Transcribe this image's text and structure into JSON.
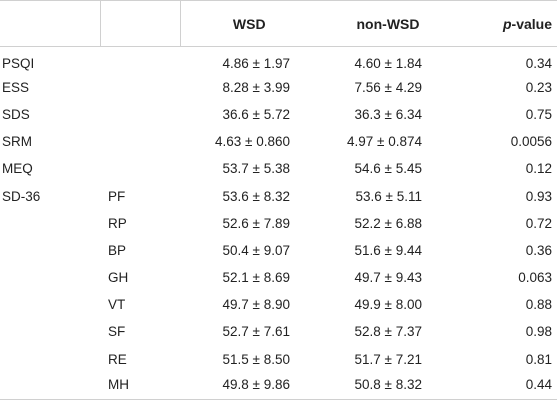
{
  "table": {
    "headers": {
      "col1": "",
      "col2": "",
      "wsd": "WSD",
      "nonwsd": "non-WSD",
      "p_italic": "p",
      "p_rest": "-value"
    },
    "rows": [
      {
        "variable": "PSQI",
        "sub": "",
        "wsd": "4.86 ± 1.97",
        "nonwsd": "4.60 ± 1.84",
        "p": "0.34"
      },
      {
        "variable": "ESS",
        "sub": "",
        "wsd": "8.28 ± 3.99",
        "nonwsd": "7.56 ± 4.29",
        "p": "0.23"
      },
      {
        "variable": "SDS",
        "sub": "",
        "wsd": "36.6 ± 5.72",
        "nonwsd": "36.3 ± 6.34",
        "p": "0.75"
      },
      {
        "variable": "SRM",
        "sub": "",
        "wsd": "4.63 ± 0.860",
        "nonwsd": "4.97 ± 0.874",
        "p": "0.0056"
      },
      {
        "variable": "MEQ",
        "sub": "",
        "wsd": "53.7 ± 5.38",
        "nonwsd": "54.6 ± 5.45",
        "p": "0.12"
      },
      {
        "variable": "SD-36",
        "sub": "PF",
        "wsd": "53.6 ± 8.32",
        "nonwsd": "53.6 ± 5.11",
        "p": "0.93"
      },
      {
        "variable": "",
        "sub": "RP",
        "wsd": "52.6 ± 7.89",
        "nonwsd": "52.2 ± 6.88",
        "p": "0.72"
      },
      {
        "variable": "",
        "sub": "BP",
        "wsd": "50.4 ± 9.07",
        "nonwsd": "51.6 ± 9.44",
        "p": "0.36"
      },
      {
        "variable": "",
        "sub": "GH",
        "wsd": "52.1 ± 8.69",
        "nonwsd": "49.7 ± 9.43",
        "p": "0.063"
      },
      {
        "variable": "",
        "sub": "VT",
        "wsd": "49.7 ± 8.90",
        "nonwsd": "49.9 ± 8.00",
        "p": "0.88"
      },
      {
        "variable": "",
        "sub": "SF",
        "wsd": "52.7 ± 7.61",
        "nonwsd": "52.8 ± 7.37",
        "p": "0.98"
      },
      {
        "variable": "",
        "sub": "RE",
        "wsd": "51.5 ± 8.50",
        "nonwsd": "51.7 ± 7.21",
        "p": "0.81"
      },
      {
        "variable": "",
        "sub": "MH",
        "wsd": "49.8 ± 9.86",
        "nonwsd": "50.8 ± 8.32",
        "p": "0.44"
      }
    ]
  }
}
